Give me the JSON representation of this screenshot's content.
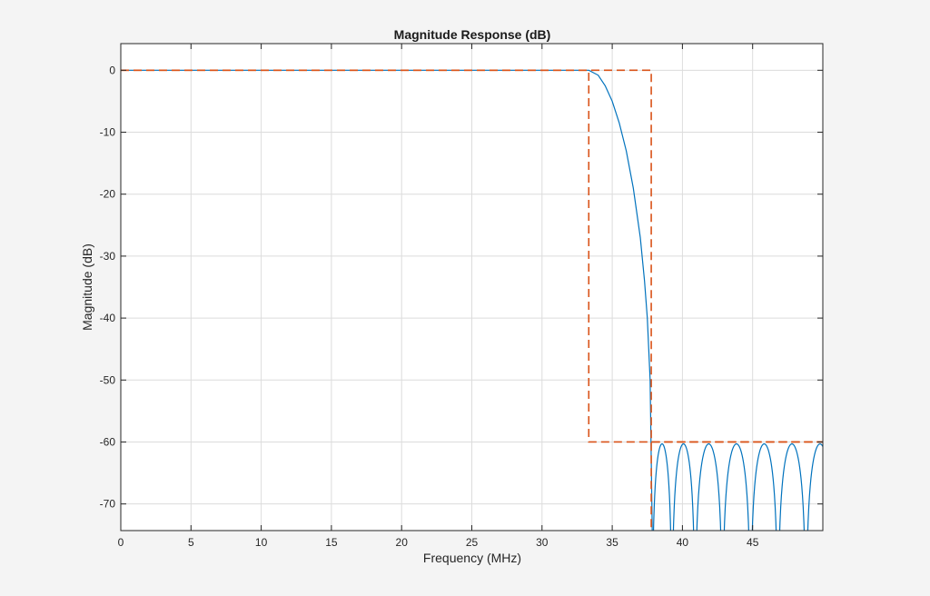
{
  "chart_data": {
    "type": "line",
    "title": "Magnitude Response (dB)",
    "xlabel": "Frequency (MHz)",
    "ylabel": "Magnitude (dB)",
    "xlim": [
      0,
      50
    ],
    "ylim": [
      -74.3,
      4.3
    ],
    "xticks": [
      0,
      5,
      10,
      15,
      20,
      25,
      30,
      35,
      40,
      45
    ],
    "yticks": [
      0,
      -10,
      -20,
      -30,
      -40,
      -50,
      -60,
      -70
    ],
    "grid": true,
    "legend": "none",
    "colors": {
      "response": "#0072bd",
      "mask": "#d95319",
      "figure_bg": "#f4f4f4",
      "axes_bg": "#ffffff",
      "grid": "#dcdcdc"
    },
    "passband_edge_mhz": 33.33,
    "stopband_edge_mhz": 37.78,
    "stopband_attenuation_db": -60,
    "stopband_null_frequencies_mhz": [
      37.85,
      39.25,
      40.9,
      42.85,
      44.85,
      46.8,
      48.8
    ],
    "series": [
      {
        "role": "response",
        "style": "solid",
        "x": [
          0,
          10,
          20,
          30,
          33.33,
          34,
          34.5,
          35,
          35.5,
          36,
          36.5,
          37,
          37.3,
          37.5,
          37.7,
          37.85
        ],
        "y": [
          0,
          0,
          0,
          0,
          0,
          -0.8,
          -2.5,
          -5,
          -8.5,
          -13,
          -19,
          -27,
          -34,
          -40,
          -50,
          -74.3
        ]
      },
      {
        "role": "mask",
        "style": "dashed",
        "x": [
          0,
          33.33,
          33.33,
          50
        ],
        "y": [
          0,
          0,
          -60,
          -60
        ]
      },
      {
        "role": "mask",
        "style": "dashed",
        "x": [
          0,
          37.78,
          37.78
        ],
        "y": [
          0,
          0,
          -74.3
        ]
      },
      {
        "role": "mask",
        "style": "dashed",
        "x": [
          37.78,
          50
        ],
        "y": [
          -60,
          -60
        ]
      }
    ]
  }
}
